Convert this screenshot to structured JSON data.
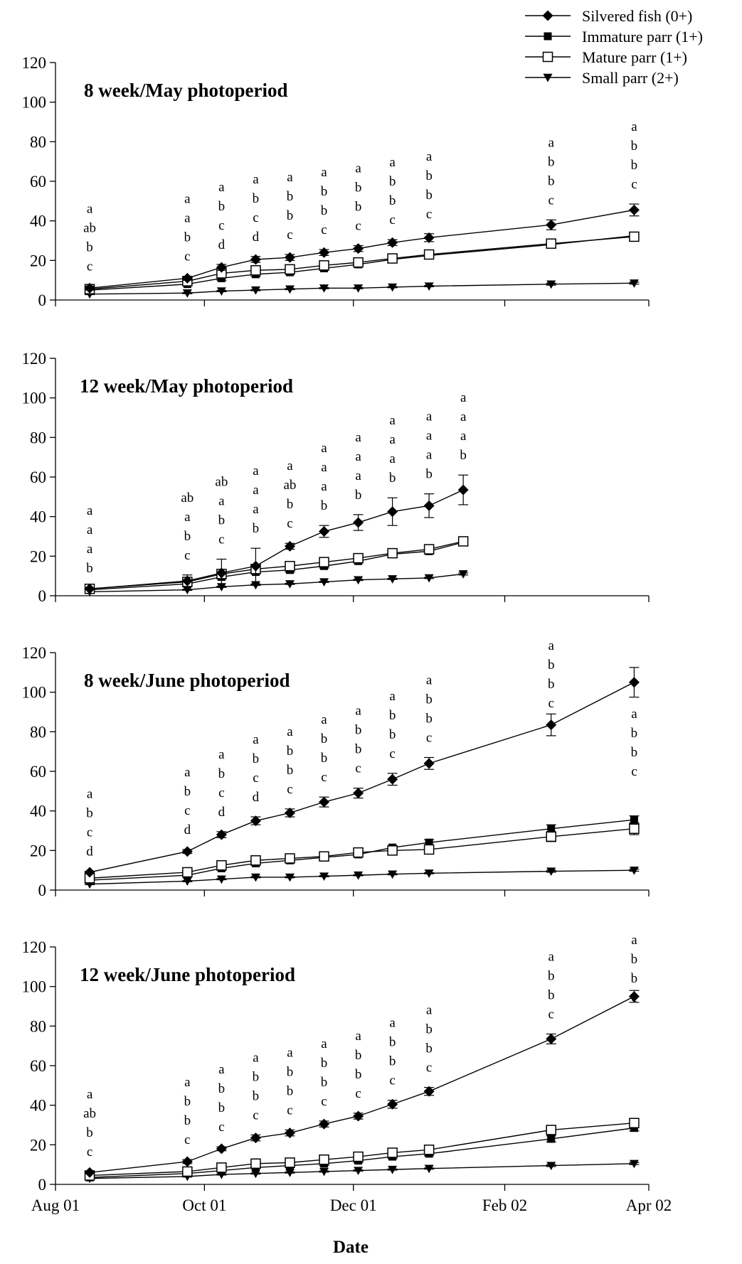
{
  "chart_data": [
    {
      "type": "line",
      "title": "8 week/May photoperiod",
      "xlabel": "Date",
      "ylabel": "",
      "ylim": [
        0,
        120
      ],
      "yticks": [
        "0",
        "20",
        "40",
        "60",
        "80",
        "100",
        "120"
      ],
      "xticks": [
        "Aug 01",
        "Oct 01",
        "Dec 01",
        "Feb 02",
        "Apr 02"
      ],
      "x": [
        "2001-08-15",
        "2001-09-24",
        "2001-10-08",
        "2001-10-22",
        "2001-11-05",
        "2001-11-19",
        "2001-12-03",
        "2001-12-17",
        "2002-01-01",
        "2002-02-20",
        "2002-03-26"
      ],
      "series": [
        {
          "name": "Silvered fish (0+)",
          "values": [
            6,
            11,
            16.5,
            20.5,
            21.5,
            24,
            26,
            29,
            31.5,
            38,
            45.5
          ],
          "err": [
            1,
            1,
            1.5,
            1.5,
            1.5,
            1.5,
            1.5,
            1.5,
            2,
            2.5,
            3
          ]
        },
        {
          "name": "Immature parr (1+)",
          "values": [
            5,
            8,
            11,
            13,
            14,
            16,
            18,
            20.5,
            22.5,
            28,
            32.5
          ],
          "err": [
            0.5,
            0.5,
            1,
            1,
            1,
            1,
            1,
            1,
            1,
            1.5,
            1.5
          ]
        },
        {
          "name": "Mature parr (1+)",
          "values": [
            5.5,
            9.5,
            13.5,
            15,
            15.5,
            17.5,
            19,
            21,
            23,
            28.5,
            32
          ],
          "err": [
            0.5,
            0.5,
            1,
            1,
            1,
            1,
            1,
            1,
            1,
            1.5,
            1.5
          ]
        },
        {
          "name": "Small parr (2+)",
          "values": [
            3,
            3.5,
            4.5,
            5,
            5.5,
            6,
            6,
            6.5,
            7,
            8,
            8.5
          ],
          "err": [
            0.3,
            0.3,
            0.3,
            0.3,
            0.3,
            0.3,
            0.3,
            0.3,
            0.3,
            0.5,
            0.5
          ]
        }
      ],
      "annotations": [
        {
          "x": "2001-08-15",
          "letters": [
            "a",
            "ab",
            "b",
            "c"
          ]
        },
        {
          "x": "2001-09-24",
          "letters": [
            "a",
            "a",
            "b",
            "c"
          ]
        },
        {
          "x": "2001-10-08",
          "letters": [
            "a",
            "b",
            "c",
            "d"
          ]
        },
        {
          "x": "2001-10-22",
          "letters": [
            "a",
            "b",
            "c",
            "d"
          ]
        },
        {
          "x": "2001-11-05",
          "letters": [
            "a",
            "b",
            "b",
            "c"
          ]
        },
        {
          "x": "2001-11-19",
          "letters": [
            "a",
            "b",
            "b",
            "c"
          ]
        },
        {
          "x": "2001-12-03",
          "letters": [
            "a",
            "b",
            "b",
            "c"
          ]
        },
        {
          "x": "2001-12-17",
          "letters": [
            "a",
            "b",
            "b",
            "c"
          ]
        },
        {
          "x": "2002-01-01",
          "letters": [
            "a",
            "b",
            "b",
            "c"
          ]
        },
        {
          "x": "2002-02-20",
          "letters": [
            "a",
            "b",
            "b",
            "c"
          ]
        },
        {
          "x": "2002-03-26",
          "letters": [
            "a",
            "b",
            "b",
            "c"
          ]
        }
      ]
    },
    {
      "type": "line",
      "title": "12 week/May photoperiod",
      "xlabel": "Date",
      "ylabel": "",
      "ylim": [
        0,
        120
      ],
      "yticks": [
        "0",
        "20",
        "40",
        "60",
        "80",
        "100",
        "120"
      ],
      "xticks": [
        "Aug 01",
        "Oct 01",
        "Dec 01",
        "Feb 02",
        "Apr 02"
      ],
      "x": [
        "2001-08-15",
        "2001-09-24",
        "2001-10-08",
        "2001-10-22",
        "2001-11-05",
        "2001-11-19",
        "2001-12-03",
        "2001-12-17",
        "2002-01-01",
        "2002-01-15"
      ],
      "series": [
        {
          "name": "Silvered fish (0+)",
          "values": [
            3.5,
            7.5,
            11.5,
            15,
            25,
            32.5,
            37,
            42.5,
            45.5,
            53.5
          ],
          "err": [
            0.5,
            3,
            7,
            9,
            1.5,
            3,
            4,
            7,
            6,
            7.5
          ]
        },
        {
          "name": "Immature parr (1+)",
          "values": [
            3,
            6,
            9.5,
            12,
            13,
            15,
            17.5,
            21,
            22.5,
            27
          ],
          "err": [
            0.5,
            0.5,
            1,
            1,
            1,
            1,
            1,
            1,
            1,
            1.5
          ]
        },
        {
          "name": "Mature parr (1+)",
          "values": [
            3.5,
            7,
            11,
            13.5,
            15,
            17,
            19,
            21.5,
            23.5,
            27.5
          ],
          "err": [
            0.5,
            0.5,
            1,
            1,
            1,
            1,
            1,
            1,
            1,
            1.5
          ]
        },
        {
          "name": "Small parr (2+)",
          "values": [
            2,
            3,
            4.5,
            5.5,
            6,
            7,
            8,
            8.5,
            9,
            11
          ],
          "err": [
            0.3,
            0.3,
            0.3,
            0.3,
            0.3,
            0.3,
            0.3,
            0.3,
            0.3,
            0.5
          ]
        }
      ],
      "annotations": [
        {
          "x": "2001-08-15",
          "letters": [
            "a",
            "a",
            "a",
            "b"
          ]
        },
        {
          "x": "2001-09-24",
          "letters": [
            "ab",
            "a",
            "b",
            "c"
          ]
        },
        {
          "x": "2001-10-08",
          "letters": [
            "ab",
            "a",
            "b",
            "c"
          ]
        },
        {
          "x": "2001-10-22",
          "letters": [
            "a",
            "a",
            "a",
            "b"
          ]
        },
        {
          "x": "2001-11-05",
          "letters": [
            "a",
            "ab",
            "b",
            "c"
          ]
        },
        {
          "x": "2001-11-19",
          "letters": [
            "a",
            "a",
            "a",
            "b"
          ]
        },
        {
          "x": "2001-12-03",
          "letters": [
            "a",
            "a",
            "a",
            "b"
          ]
        },
        {
          "x": "2001-12-17",
          "letters": [
            "a",
            "a",
            "a",
            "b"
          ]
        },
        {
          "x": "2002-01-01",
          "letters": [
            "a",
            "a",
            "a",
            "b"
          ]
        },
        {
          "x": "2002-01-15",
          "letters": [
            "a",
            "a",
            "a",
            "b"
          ]
        }
      ]
    },
    {
      "type": "line",
      "title": "8 week/June photoperiod",
      "xlabel": "Date",
      "ylabel": "",
      "ylim": [
        0,
        120
      ],
      "yticks": [
        "0",
        "20",
        "40",
        "60",
        "80",
        "100",
        "120"
      ],
      "xticks": [
        "Aug 01",
        "Oct 01",
        "Dec 01",
        "Feb 02",
        "Apr 02"
      ],
      "x": [
        "2001-08-15",
        "2001-09-24",
        "2001-10-08",
        "2001-10-22",
        "2001-11-05",
        "2001-11-19",
        "2001-12-03",
        "2001-12-17",
        "2002-01-01",
        "2002-02-20",
        "2002-03-26"
      ],
      "series": [
        {
          "name": "Silvered fish (0+)",
          "values": [
            9,
            19.5,
            28,
            35,
            39,
            44.5,
            49,
            56,
            64,
            83.5,
            105
          ],
          "err": [
            0.5,
            1,
            1.5,
            2,
            2,
            2.5,
            2.5,
            3,
            3,
            5.5,
            7.5
          ]
        },
        {
          "name": "Immature parr (1+)",
          "values": [
            5,
            7.5,
            11,
            13.5,
            15,
            16.5,
            18,
            21.5,
            24,
            31,
            35.5
          ],
          "err": [
            0.5,
            0.5,
            1,
            1,
            1,
            1,
            1,
            1,
            1.5,
            2,
            2
          ]
        },
        {
          "name": "Mature parr (1+)",
          "values": [
            6,
            9,
            12.5,
            15,
            16,
            17,
            19,
            20,
            20.5,
            27,
            31
          ],
          "err": [
            0.5,
            0.5,
            1,
            1,
            1,
            1,
            1,
            1.5,
            1.5,
            2.5,
            3
          ]
        },
        {
          "name": "Small parr (2+)",
          "values": [
            3,
            4.5,
            5.5,
            6.5,
            6.5,
            7,
            7.5,
            8,
            8.5,
            9.5,
            10
          ],
          "err": [
            0.3,
            0.3,
            0.3,
            0.3,
            0.3,
            0.3,
            0.3,
            0.3,
            0.3,
            0.5,
            0.5
          ]
        }
      ],
      "annotations": [
        {
          "x": "2001-08-15",
          "letters": [
            "a",
            "b",
            "c",
            "d"
          ]
        },
        {
          "x": "2001-09-24",
          "letters": [
            "a",
            "b",
            "c",
            "d"
          ]
        },
        {
          "x": "2001-10-08",
          "letters": [
            "a",
            "b",
            "c",
            "d"
          ]
        },
        {
          "x": "2001-10-22",
          "letters": [
            "a",
            "b",
            "c",
            "d"
          ]
        },
        {
          "x": "2001-11-05",
          "letters": [
            "a",
            "b",
            "b",
            "c"
          ]
        },
        {
          "x": "2001-11-19",
          "letters": [
            "a",
            "b",
            "b",
            "c"
          ]
        },
        {
          "x": "2001-12-03",
          "letters": [
            "a",
            "b",
            "b",
            "c"
          ]
        },
        {
          "x": "2001-12-17",
          "letters": [
            "a",
            "b",
            "b",
            "c"
          ]
        },
        {
          "x": "2002-01-01",
          "letters": [
            "a",
            "b",
            "b",
            "c"
          ]
        },
        {
          "x": "2002-02-20",
          "letters": [
            "a",
            "b",
            "b",
            "c"
          ]
        },
        {
          "x": "2002-03-26",
          "letters": [
            "a",
            "b",
            "b",
            "c"
          ]
        }
      ]
    },
    {
      "type": "line",
      "title": "12 week/June photoperiod",
      "xlabel": "Date",
      "ylabel": "",
      "ylim": [
        0,
        120
      ],
      "yticks": [
        "0",
        "20",
        "40",
        "60",
        "80",
        "100",
        "120"
      ],
      "xticks": [
        "Aug 01",
        "Oct 01",
        "Dec 01",
        "Feb 02",
        "Apr 02"
      ],
      "x": [
        "2001-08-15",
        "2001-09-24",
        "2001-10-08",
        "2001-10-22",
        "2001-11-05",
        "2001-11-19",
        "2001-12-03",
        "2001-12-17",
        "2002-01-01",
        "2002-02-20",
        "2002-03-26"
      ],
      "series": [
        {
          "name": "Silvered fish (0+)",
          "values": [
            6,
            11.5,
            18,
            23.5,
            26,
            30.5,
            34.5,
            40.5,
            47,
            73.5,
            95
          ],
          "err": [
            0.5,
            1,
            1,
            1.5,
            1.5,
            1.5,
            1.5,
            2,
            2,
            2.5,
            3
          ]
        },
        {
          "name": "Immature parr (1+)",
          "values": [
            3.5,
            5.5,
            7,
            8.5,
            9.5,
            10.5,
            12,
            14,
            15.5,
            23,
            28.5
          ],
          "err": [
            0.5,
            0.5,
            0.5,
            0.5,
            1,
            1,
            1,
            1,
            1,
            1.5,
            1.5
          ]
        },
        {
          "name": "Mature parr (1+)",
          "values": [
            4.5,
            6.5,
            8.5,
            10.5,
            11,
            12.5,
            14,
            16,
            17.5,
            27.5,
            31
          ],
          "err": [
            0.5,
            0.5,
            0.5,
            0.5,
            1,
            1,
            1,
            1,
            1,
            1.5,
            2
          ]
        },
        {
          "name": "Small parr (2+)",
          "values": [
            3,
            4,
            5,
            5.5,
            6,
            6.5,
            7,
            7.5,
            8,
            9.5,
            10.5
          ],
          "err": [
            0.3,
            0.3,
            0.3,
            0.3,
            0.3,
            0.3,
            0.3,
            0.3,
            0.3,
            0.5,
            0.5
          ]
        }
      ],
      "annotations": [
        {
          "x": "2001-08-15",
          "letters": [
            "a",
            "ab",
            "b",
            "c"
          ]
        },
        {
          "x": "2001-09-24",
          "letters": [
            "a",
            "b",
            "b",
            "c"
          ]
        },
        {
          "x": "2001-10-08",
          "letters": [
            "a",
            "b",
            "b",
            "c"
          ]
        },
        {
          "x": "2001-10-22",
          "letters": [
            "a",
            "b",
            "b",
            "c"
          ]
        },
        {
          "x": "2001-11-05",
          "letters": [
            "a",
            "b",
            "b",
            "c"
          ]
        },
        {
          "x": "2001-11-19",
          "letters": [
            "a",
            "b",
            "b",
            "c"
          ]
        },
        {
          "x": "2001-12-03",
          "letters": [
            "a",
            "b",
            "b",
            "c"
          ]
        },
        {
          "x": "2001-12-17",
          "letters": [
            "a",
            "b",
            "b",
            "c"
          ]
        },
        {
          "x": "2002-01-01",
          "letters": [
            "a",
            "b",
            "b",
            "c"
          ]
        },
        {
          "x": "2002-02-20",
          "letters": [
            "a",
            "b",
            "b",
            "c"
          ]
        },
        {
          "x": "2002-03-26",
          "letters": [
            "a",
            "b",
            "b",
            "c"
          ]
        }
      ]
    }
  ],
  "legend": {
    "placement": "top-right",
    "entries": [
      {
        "label": "Silvered fish (0+)",
        "marker": "diamond-filled"
      },
      {
        "label": "Immature parr (1+)",
        "marker": "square-filled"
      },
      {
        "label": "Mature parr (1+)",
        "marker": "square-open"
      },
      {
        "label": "Small parr (2+)",
        "marker": "triangle-down-filled"
      }
    ]
  },
  "x_axis_title": "Date"
}
